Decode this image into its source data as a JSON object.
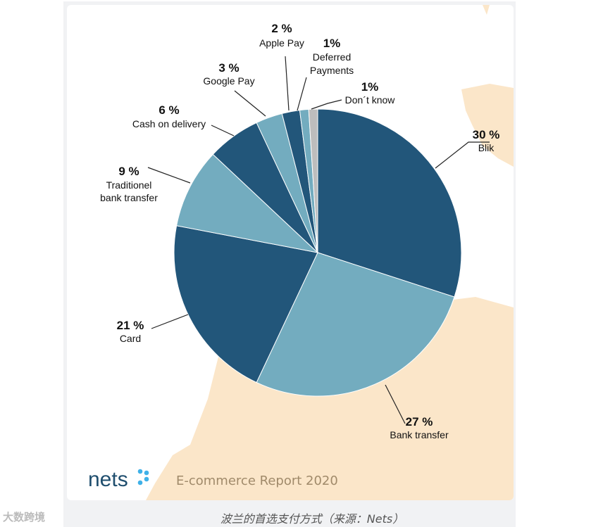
{
  "chart_data": {
    "type": "pie",
    "title": "",
    "start": "top, clockwise",
    "slices": [
      {
        "label": "Blik",
        "pct_label": "30 %",
        "value": 30,
        "color": "#22567a"
      },
      {
        "label": "Bank transfer",
        "pct_label": "27 %",
        "value": 27,
        "color": "#73acbf"
      },
      {
        "label": "Card",
        "pct_label": "21 %",
        "value": 21,
        "color": "#22567a"
      },
      {
        "label": "Traditionel bank transfer",
        "label_lines": [
          "Traditionel",
          "bank transfer"
        ],
        "pct_label": "9 %",
        "value": 9,
        "color": "#73acbf"
      },
      {
        "label": "Cash on delivery",
        "pct_label": "6 %",
        "value": 6,
        "color": "#22567a"
      },
      {
        "label": "Google Pay",
        "pct_label": "3 %",
        "value": 3,
        "color": "#73acbf"
      },
      {
        "label": "Apple Pay",
        "pct_label": "2 %",
        "value": 2,
        "color": "#22567a"
      },
      {
        "label": "Deferred Payments",
        "label_lines": [
          "Deferred",
          "Payments"
        ],
        "pct_label": "1%",
        "value": 1,
        "color": "#73acbf"
      },
      {
        "label": "Don´t know",
        "pct_label": "1%",
        "value": 1,
        "color": "#bdbdbd"
      }
    ]
  },
  "logo": {
    "text": "nets",
    "color": "#1f4e6e",
    "dots_color": "#3fb1e8"
  },
  "report_title": "E-commerce Report 2020",
  "caption": "波兰的首选支付方式（来源：Nets）",
  "watermark": "大数跨境",
  "colors": {
    "map": "#fbe6c9",
    "dark": "#22567a",
    "light": "#73acbf"
  }
}
